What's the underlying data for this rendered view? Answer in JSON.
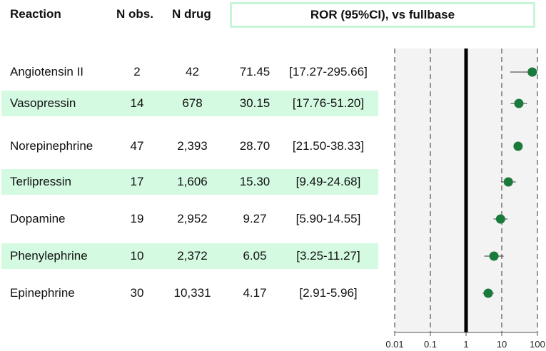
{
  "header": {
    "reaction": "Reaction",
    "n_obs": "N obs.",
    "n_drug": "N drug",
    "ror": "ROR (95%CI), vs fullbase"
  },
  "rows": [
    {
      "name": "Angiotensin II",
      "n_obs": "2",
      "n_drug": "42",
      "ror": "71.45",
      "ci": "[17.27-295.66]"
    },
    {
      "name": "Vasopressin",
      "n_obs": "14",
      "n_drug": "678",
      "ror": "30.15",
      "ci": "[17.76-51.20]"
    },
    {
      "name": "Norepinephrine",
      "n_obs": "47",
      "n_drug": "2,393",
      "ror": "28.70",
      "ci": "[21.50-38.33]"
    },
    {
      "name": "Terlipressin",
      "n_obs": "17",
      "n_drug": "1,606",
      "ror": "15.30",
      "ci": "[9.49-24.68]"
    },
    {
      "name": "Dopamine",
      "n_obs": "19",
      "n_drug": "2,952",
      "ror": "9.27",
      "ci": "[5.90-14.55]"
    },
    {
      "name": "Phenylephrine",
      "n_obs": "10",
      "n_drug": "2,372",
      "ror": "6.05",
      "ci": "[3.25-11.27]"
    },
    {
      "name": "Epinephrine",
      "n_obs": "30",
      "n_drug": "10,331",
      "ror": "4.17",
      "ci": "[2.91-5.96]"
    }
  ],
  "chart_data": {
    "type": "scatter",
    "x_scale": "log",
    "xlim": [
      0.01,
      100
    ],
    "x_ticks": [
      "0.01",
      "0.1",
      "1",
      "10",
      "100"
    ],
    "reference_line": 1,
    "series": [
      {
        "categories": [
          "Angiotensin II",
          "Vasopressin",
          "Norepinephrine",
          "Terlipressin",
          "Dopamine",
          "Phenylephrine",
          "Epinephrine"
        ],
        "estimate": [
          71.45,
          30.15,
          28.7,
          15.3,
          9.27,
          6.05,
          4.17
        ],
        "ci_low": [
          17.27,
          17.76,
          21.5,
          9.49,
          5.9,
          3.25,
          2.91
        ],
        "ci_high": [
          295.66,
          51.2,
          38.33,
          24.68,
          14.55,
          11.27,
          5.96
        ]
      }
    ],
    "colors": {
      "point": "#1a7a3c",
      "panel": "#f3f3f3",
      "row_shade": "#d4fae2",
      "header_border": "#c8f5d8"
    }
  }
}
